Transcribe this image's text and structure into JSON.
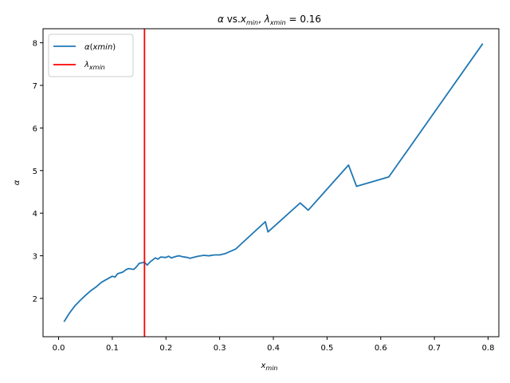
{
  "chart_data": {
    "type": "line",
    "title": "α vs.x_min, λ_xmin = 0.16",
    "xlabel": "x_min",
    "ylabel": "α",
    "xlim": [
      -0.029,
      0.82
    ],
    "ylim": [
      1.1,
      8.33
    ],
    "xticks": [
      "0.0",
      "0.1",
      "0.2",
      "0.3",
      "0.4",
      "0.5",
      "0.6",
      "0.7",
      "0.8"
    ],
    "yticks": [
      "2",
      "3",
      "4",
      "5",
      "6",
      "7",
      "8"
    ],
    "legend_position": "top-left",
    "grid": false,
    "series": [
      {
        "name": "α(xmin)",
        "color": "#1f77b4",
        "x": [
          0.01,
          0.02,
          0.03,
          0.04,
          0.05,
          0.06,
          0.07,
          0.08,
          0.09,
          0.1,
          0.105,
          0.11,
          0.12,
          0.125,
          0.13,
          0.14,
          0.145,
          0.15,
          0.16,
          0.165,
          0.17,
          0.18,
          0.185,
          0.19,
          0.2,
          0.205,
          0.21,
          0.215,
          0.22,
          0.225,
          0.23,
          0.24,
          0.245,
          0.25,
          0.26,
          0.27,
          0.28,
          0.29,
          0.3,
          0.31,
          0.33,
          0.385,
          0.39,
          0.45,
          0.465,
          0.54,
          0.555,
          0.615,
          0.79
        ],
        "y": [
          1.45,
          1.65,
          1.82,
          1.95,
          2.07,
          2.18,
          2.27,
          2.38,
          2.45,
          2.52,
          2.5,
          2.58,
          2.62,
          2.67,
          2.7,
          2.68,
          2.74,
          2.82,
          2.85,
          2.78,
          2.85,
          2.95,
          2.92,
          2.97,
          2.96,
          2.99,
          2.95,
          2.97,
          2.99,
          3.0,
          2.98,
          2.96,
          2.94,
          2.96,
          2.99,
          3.01,
          3.0,
          3.02,
          3.02,
          3.05,
          3.16,
          3.8,
          3.56,
          4.24,
          4.07,
          5.13,
          4.63,
          4.85,
          7.98
        ]
      }
    ],
    "vline": {
      "name": "λ_xmin",
      "x": 0.16,
      "color": "#ff0000"
    }
  }
}
